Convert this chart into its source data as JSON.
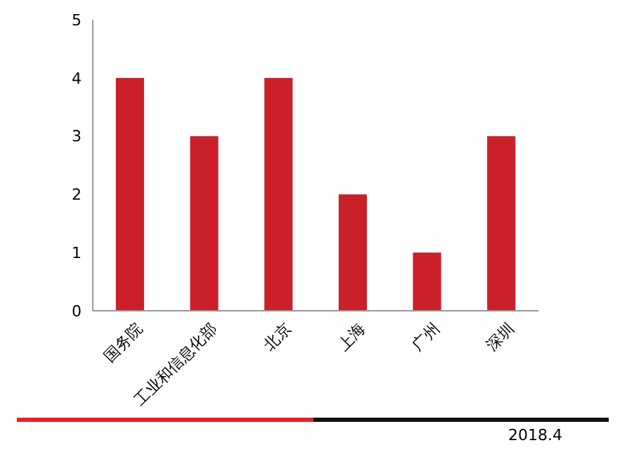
{
  "chart_data": {
    "type": "bar",
    "categories": [
      "国务院",
      "工业和信息化部",
      "北京",
      "上海",
      "广州",
      "深圳"
    ],
    "values": [
      4,
      3,
      4,
      2,
      1,
      3
    ],
    "color": "#c9202a",
    "ylim": [
      0,
      5
    ],
    "yticks": [
      0,
      1,
      2,
      3,
      4,
      5
    ],
    "annotations": [
      "2018.4"
    ]
  }
}
